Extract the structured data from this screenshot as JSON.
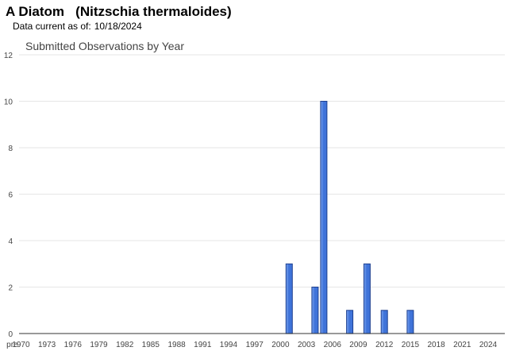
{
  "header": {
    "title": "A Diatom   (Nitzschia thermaloides)",
    "date_label": "Data current as of:",
    "date_value": "10/18/2024"
  },
  "colors": {
    "bar_fill_top": "#7aa4f0",
    "bar_fill": "#3f73d9",
    "bar_stroke": "#1d3f8f",
    "grid": "#e6e6e6",
    "axis": "#333333"
  },
  "chart_data": {
    "type": "bar",
    "title": "Submitted Observations by Year",
    "xlabel": "",
    "ylabel": "",
    "ylim": [
      0,
      12
    ],
    "yticks": [
      0,
      2,
      4,
      6,
      8,
      10,
      12
    ],
    "grid": true,
    "legend": "none",
    "x_tick_labels": [
      "pre",
      "1970",
      "1973",
      "1976",
      "1979",
      "1982",
      "1985",
      "1988",
      "1991",
      "1994",
      "1997",
      "2000",
      "2003",
      "2006",
      "2009",
      "2012",
      "2015",
      "2018",
      "2021",
      "2024"
    ],
    "categories": [
      "pre",
      "1970",
      "1971",
      "1972",
      "1973",
      "1974",
      "1975",
      "1976",
      "1977",
      "1978",
      "1979",
      "1980",
      "1981",
      "1982",
      "1983",
      "1984",
      "1985",
      "1986",
      "1987",
      "1988",
      "1989",
      "1990",
      "1991",
      "1992",
      "1993",
      "1994",
      "1995",
      "1996",
      "1997",
      "1998",
      "1999",
      "2000",
      "2001",
      "2002",
      "2003",
      "2004",
      "2005",
      "2006",
      "2007",
      "2008",
      "2009",
      "2010",
      "2011",
      "2012",
      "2013",
      "2014",
      "2015",
      "2016",
      "2017",
      "2018",
      "2019",
      "2020",
      "2021",
      "2022",
      "2023",
      "2024"
    ],
    "values": [
      0,
      0,
      0,
      0,
      0,
      0,
      0,
      0,
      0,
      0,
      0,
      0,
      0,
      0,
      0,
      0,
      0,
      0,
      0,
      0,
      0,
      0,
      0,
      0,
      0,
      0,
      0,
      0,
      0,
      0,
      0,
      0,
      3,
      0,
      0,
      2,
      10,
      0,
      0,
      1,
      0,
      3,
      0,
      1,
      0,
      0,
      1,
      0,
      0,
      0,
      0,
      0,
      0,
      0,
      0,
      0
    ]
  }
}
